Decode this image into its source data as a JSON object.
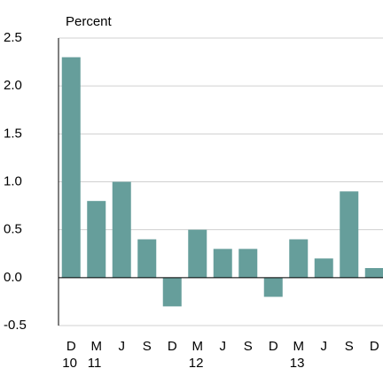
{
  "chart_data": {
    "type": "bar",
    "y_label": "Percent",
    "categories": [
      "D",
      "M",
      "J",
      "S",
      "D",
      "M",
      "J",
      "S",
      "D",
      "M",
      "J",
      "S",
      "D"
    ],
    "year_labels": [
      "10",
      "11",
      null,
      null,
      null,
      "12",
      null,
      null,
      null,
      "13",
      null,
      null,
      null
    ],
    "values": [
      2.3,
      0.8,
      1.0,
      0.4,
      -0.3,
      0.5,
      0.3,
      0.3,
      -0.2,
      0.4,
      0.2,
      0.9,
      0.1
    ],
    "color": "#669e9b",
    "ylim": [
      -0.5,
      2.5
    ],
    "yticks": [
      -0.5,
      {
        "value": 0,
        "label": "0.0"
      },
      0.5,
      {
        "value": 1,
        "label": "1.0"
      },
      1.5,
      {
        "value": 2,
        "label": "2.0"
      },
      2.5
    ],
    "grid": true
  }
}
